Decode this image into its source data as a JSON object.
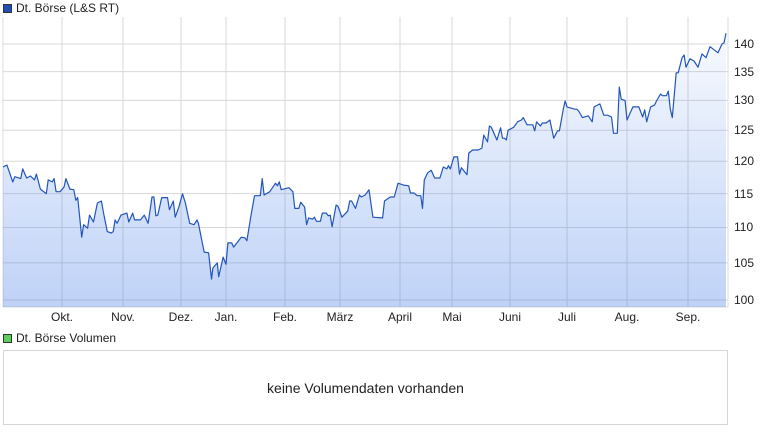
{
  "legend_price": {
    "label": "Dt. Börse (L&S RT)",
    "color": "#1f4fb5"
  },
  "legend_volume": {
    "label": "Dt. Börse Volumen",
    "color": "#5ad05a"
  },
  "volume_message": "keine Volumendaten vorhanden",
  "chart_data": {
    "type": "area",
    "title": "",
    "xlabel": "",
    "ylabel": "",
    "y_scale": "log",
    "ylim": [
      99.1,
      145.1
    ],
    "grid": true,
    "y_ticks": [
      "100",
      "105",
      "110",
      "115",
      "120",
      "125",
      "130",
      "135",
      "140"
    ],
    "x_ticks": [
      "Okt.",
      "Nov.",
      "Dez.",
      "Jan.",
      "Feb.",
      "März",
      "April",
      "Mai",
      "Juni",
      "Juli",
      "Aug.",
      "Sep."
    ],
    "line_color": "#2255bb",
    "fill_color": "#bcd3f7",
    "series": [
      {
        "name": "Dt. Börse (L&S RT)",
        "points": [
          [
            "09-01",
            119.1
          ],
          [
            "09-03",
            119.4
          ],
          [
            "09-06",
            116.8
          ],
          [
            "09-07",
            117.6
          ],
          [
            "09-10",
            117.3
          ],
          [
            "09-11",
            118.8
          ],
          [
            "09-13",
            117.4
          ],
          [
            "09-15",
            117.7
          ],
          [
            "09-17",
            117.1
          ],
          [
            "09-18",
            118.0
          ],
          [
            "09-20",
            115.7
          ],
          [
            "09-23",
            115.0
          ],
          [
            "09-24",
            117.1
          ],
          [
            "09-26",
            116.8
          ],
          [
            "09-27",
            117.3
          ],
          [
            "09-28",
            115.3
          ],
          [
            "09-30",
            115.3
          ],
          [
            "10-02",
            116.0
          ],
          [
            "10-03",
            117.3
          ],
          [
            "10-05",
            115.7
          ],
          [
            "10-07",
            115.6
          ],
          [
            "10-08",
            114.0
          ],
          [
            "10-09",
            114.4
          ],
          [
            "10-11",
            108.6
          ],
          [
            "10-12",
            110.4
          ],
          [
            "10-14",
            109.9
          ],
          [
            "10-15",
            111.8
          ],
          [
            "10-17",
            110.8
          ],
          [
            "10-19",
            113.6
          ],
          [
            "10-21",
            113.9
          ],
          [
            "10-22",
            112.3
          ],
          [
            "10-24",
            109.4
          ],
          [
            "10-26",
            109.2
          ],
          [
            "10-27",
            109.4
          ],
          [
            "10-28",
            111.1
          ],
          [
            "10-29",
            110.6
          ],
          [
            "10-31",
            111.8
          ],
          [
            "11-03",
            112.1
          ],
          [
            "11-04",
            110.8
          ],
          [
            "11-06",
            112.1
          ],
          [
            "11-07",
            111.1
          ],
          [
            "11-10",
            111.1
          ],
          [
            "11-12",
            111.8
          ],
          [
            "11-14",
            110.6
          ],
          [
            "11-16",
            114.5
          ],
          [
            "11-17",
            114.5
          ],
          [
            "11-18",
            111.7
          ],
          [
            "11-19",
            111.8
          ],
          [
            "11-21",
            114.4
          ],
          [
            "11-24",
            114.4
          ],
          [
            "11-25",
            112.6
          ],
          [
            "11-27",
            113.9
          ],
          [
            "11-28",
            111.5
          ],
          [
            "11-30",
            113.1
          ],
          [
            "12-02",
            115.0
          ],
          [
            "12-04",
            113.6
          ],
          [
            "12-07",
            110.6
          ],
          [
            "12-10",
            110.4
          ],
          [
            "12-12",
            111.1
          ],
          [
            "12-13",
            110.6
          ],
          [
            "12-15",
            108.5
          ],
          [
            "12-17",
            106.5
          ],
          [
            "12-20",
            106.4
          ],
          [
            "12-22",
            102.8
          ],
          [
            "12-23",
            104.3
          ],
          [
            "12-26",
            105.0
          ],
          [
            "12-27",
            103.1
          ],
          [
            "12-30",
            105.8
          ],
          [
            "01-01",
            104.8
          ],
          [
            "01-02",
            107.8
          ],
          [
            "01-04",
            107.8
          ],
          [
            "01-05",
            107.2
          ],
          [
            "01-07",
            107.9
          ],
          [
            "01-09",
            108.6
          ],
          [
            "01-11",
            108.5
          ],
          [
            "01-12",
            108.1
          ],
          [
            "01-14",
            111.5
          ],
          [
            "01-16",
            114.7
          ],
          [
            "01-19",
            114.7
          ],
          [
            "01-20",
            117.3
          ],
          [
            "01-21",
            114.8
          ],
          [
            "01-24",
            115.3
          ],
          [
            "01-27",
            116.6
          ],
          [
            "01-28",
            116.2
          ],
          [
            "01-29",
            116.8
          ],
          [
            "01-30",
            115.6
          ],
          [
            "02-03",
            115.9
          ],
          [
            "02-05",
            115.3
          ],
          [
            "02-06",
            112.8
          ],
          [
            "02-08",
            112.8
          ],
          [
            "02-09",
            113.7
          ],
          [
            "02-11",
            113.0
          ],
          [
            "02-12",
            110.4
          ],
          [
            "02-13",
            111.4
          ],
          [
            "02-15",
            111.2
          ],
          [
            "02-16",
            111.5
          ],
          [
            "02-17",
            110.9
          ],
          [
            "02-19",
            110.9
          ],
          [
            "02-20",
            112.1
          ],
          [
            "02-22",
            112.1
          ],
          [
            "02-23",
            111.7
          ],
          [
            "02-24",
            111.8
          ],
          [
            "02-25",
            110.1
          ],
          [
            "02-27",
            113.3
          ],
          [
            "02-28",
            113.1
          ],
          [
            "03-02",
            111.5
          ],
          [
            "03-05",
            112.4
          ],
          [
            "03-06",
            113.9
          ],
          [
            "03-07",
            113.9
          ],
          [
            "03-09",
            112.8
          ],
          [
            "03-11",
            114.8
          ],
          [
            "03-12",
            114.5
          ],
          [
            "03-14",
            114.8
          ],
          [
            "03-16",
            115.6
          ],
          [
            "03-18",
            111.5
          ],
          [
            "03-23",
            111.4
          ],
          [
            "03-24",
            113.9
          ],
          [
            "03-27",
            114.5
          ],
          [
            "03-29",
            114.5
          ],
          [
            "03-31",
            116.6
          ],
          [
            "04-03",
            116.3
          ],
          [
            "04-06",
            116.2
          ],
          [
            "04-07",
            115.1
          ],
          [
            "04-09",
            115.1
          ],
          [
            "04-11",
            114.7
          ],
          [
            "04-13",
            114.7
          ],
          [
            "04-14",
            112.8
          ],
          [
            "04-15",
            117.1
          ],
          [
            "04-17",
            118.2
          ],
          [
            "04-19",
            118.6
          ],
          [
            "04-21",
            117.4
          ],
          [
            "04-24",
            117.4
          ],
          [
            "04-26",
            119.1
          ],
          [
            "04-28",
            118.8
          ],
          [
            "04-29",
            119.3
          ],
          [
            "04-30",
            118.8
          ],
          [
            "05-02",
            120.7
          ],
          [
            "05-04",
            120.7
          ],
          [
            "05-05",
            118.0
          ],
          [
            "05-06",
            119.0
          ],
          [
            "05-09",
            117.9
          ],
          [
            "05-10",
            121.3
          ],
          [
            "05-12",
            121.8
          ],
          [
            "05-15",
            121.8
          ],
          [
            "05-17",
            122.1
          ],
          [
            "05-18",
            124.2
          ],
          [
            "05-20",
            123.1
          ],
          [
            "05-21",
            125.7
          ],
          [
            "05-22",
            125.5
          ],
          [
            "05-25",
            123.4
          ],
          [
            "05-27",
            125.4
          ],
          [
            "05-28",
            123.7
          ],
          [
            "05-29",
            123.7
          ],
          [
            "05-30",
            123.4
          ],
          [
            "05-31",
            125.0
          ],
          [
            "06-03",
            125.5
          ],
          [
            "06-05",
            126.4
          ],
          [
            "06-07",
            126.7
          ],
          [
            "06-08",
            127.1
          ],
          [
            "06-10",
            125.9
          ],
          [
            "06-13",
            125.9
          ],
          [
            "06-14",
            124.9
          ],
          [
            "06-15",
            126.4
          ],
          [
            "06-17",
            125.7
          ],
          [
            "06-18",
            126.2
          ],
          [
            "06-20",
            126.2
          ],
          [
            "06-22",
            126.7
          ],
          [
            "06-24",
            123.7
          ],
          [
            "06-26",
            124.9
          ],
          [
            "06-27",
            124.9
          ],
          [
            "06-29",
            128.4
          ],
          [
            "06-30",
            129.9
          ],
          [
            "07-01",
            128.9
          ],
          [
            "07-05",
            128.5
          ],
          [
            "07-06",
            128.5
          ],
          [
            "07-07",
            128.2
          ],
          [
            "07-09",
            127.1
          ],
          [
            "07-12",
            127.4
          ],
          [
            "07-14",
            126.4
          ],
          [
            "07-15",
            128.9
          ],
          [
            "07-18",
            129.4
          ],
          [
            "07-20",
            127.5
          ],
          [
            "07-22",
            127.5
          ],
          [
            "07-24",
            127.2
          ],
          [
            "07-25",
            124.5
          ],
          [
            "07-27",
            124.5
          ],
          [
            "07-28",
            132.3
          ],
          [
            "07-29",
            130.2
          ],
          [
            "07-31",
            130.0
          ],
          [
            "08-01",
            126.7
          ],
          [
            "08-04",
            128.9
          ],
          [
            "08-07",
            128.9
          ],
          [
            "08-09",
            127.2
          ],
          [
            "08-10",
            128.4
          ],
          [
            "08-11",
            126.4
          ],
          [
            "08-13",
            128.9
          ],
          [
            "08-15",
            129.2
          ],
          [
            "08-16",
            129.9
          ],
          [
            "08-18",
            131.1
          ],
          [
            "08-19",
            130.8
          ],
          [
            "08-21",
            130.8
          ],
          [
            "08-22",
            131.6
          ],
          [
            "08-23",
            128.5
          ],
          [
            "08-24",
            127.1
          ],
          [
            "08-26",
            134.8
          ],
          [
            "08-27",
            134.8
          ],
          [
            "08-29",
            137.5
          ],
          [
            "08-30",
            138.0
          ],
          [
            "08-31",
            135.8
          ],
          [
            "09-02",
            137.3
          ],
          [
            "09-04",
            136.9
          ],
          [
            "09-06",
            135.8
          ],
          [
            "09-08",
            138.2
          ],
          [
            "09-10",
            137.5
          ],
          [
            "09-12",
            139.5
          ],
          [
            "09-16",
            138.4
          ],
          [
            "09-18",
            140.0
          ],
          [
            "09-19",
            140.2
          ],
          [
            "09-20",
            142.0
          ]
        ]
      }
    ]
  }
}
